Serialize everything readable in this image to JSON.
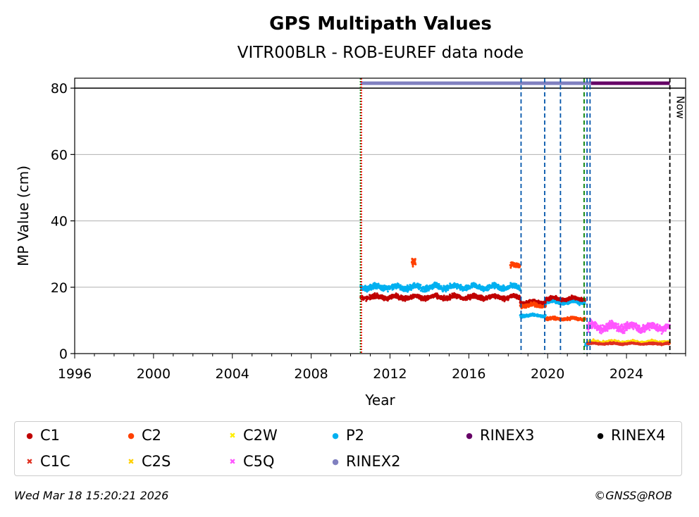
{
  "chart_data": {
    "type": "scatter",
    "title": "GPS Multipath Values",
    "subtitle": "VITR00BLR - ROB-EUREF data node",
    "xlabel": "Year",
    "ylabel": "MP Value (cm)",
    "xlim": [
      1996,
      2027
    ],
    "ylim": [
      0,
      83
    ],
    "xticks": [
      1996,
      2000,
      2004,
      2008,
      2012,
      2016,
      2020,
      2024
    ],
    "yticks": [
      0,
      20,
      40,
      60,
      80
    ],
    "grid": "y",
    "colors": {
      "C1": "#c00000",
      "C1C": "#e03020",
      "C2": "#ff4000",
      "C2S": "#ffd000",
      "C2W": "#ffee00",
      "C5Q": "#ff55ff",
      "P2": "#00b0f0",
      "RINEX2": "#8080c0",
      "RINEX3": "#660066",
      "RINEX4": "#000000",
      "green_line": "#008000",
      "red_line": "#ff0000",
      "blue_line": "#0055aa",
      "now_line": "#000000"
    },
    "reference_line_y": 80,
    "series": [
      {
        "name": "P2",
        "segments": [
          {
            "x": [
              2010.5,
              2018.6
            ],
            "base": 20,
            "noise": 1.2
          },
          {
            "x": [
              2018.6,
              2019.9
            ],
            "base": 11.5,
            "noise": 0.6
          },
          {
            "x": [
              2019.9,
              2021.9
            ],
            "base": 15.5,
            "noise": 0.8
          },
          {
            "x": [
              2021.9,
              2022.2
            ],
            "base": 3,
            "noise": 0.8
          }
        ]
      },
      {
        "name": "C1",
        "segments": [
          {
            "x": [
              2010.5,
              2018.6
            ],
            "base": 17,
            "noise": 1.0
          },
          {
            "x": [
              2018.6,
              2019.9
            ],
            "base": 15.5,
            "noise": 0.8
          },
          {
            "x": [
              2019.9,
              2021.9
            ],
            "base": 16.5,
            "noise": 0.8
          }
        ]
      },
      {
        "name": "C2",
        "segments": [
          {
            "x": [
              2013.1,
              2013.3
            ],
            "base": 27,
            "noise": 2.0
          },
          {
            "x": [
              2018.1,
              2018.6
            ],
            "base": 26.5,
            "noise": 1.0
          },
          {
            "x": [
              2018.6,
              2019.9
            ],
            "base": 14.5,
            "noise": 0.8
          },
          {
            "x": [
              2019.9,
              2021.9
            ],
            "base": 10.5,
            "noise": 0.6
          }
        ]
      },
      {
        "name": "C5Q",
        "segments": [
          {
            "x": [
              2022.0,
              2026.2
            ],
            "base": 8,
            "noise": 1.8
          }
        ]
      },
      {
        "name": "C2S",
        "segments": [
          {
            "x": [
              2022.0,
              2026.2
            ],
            "base": 3.5,
            "noise": 0.6
          }
        ]
      },
      {
        "name": "C2W",
        "segments": [
          {
            "x": [
              2022.0,
              2026.2
            ],
            "base": 3.2,
            "noise": 0.5
          }
        ]
      },
      {
        "name": "C1C",
        "segments": [
          {
            "x": [
              2022.0,
              2026.2
            ],
            "base": 3.0,
            "noise": 0.4
          }
        ]
      }
    ],
    "format_bars": [
      {
        "name": "RINEX2",
        "x": [
          2010.5,
          2022.2
        ],
        "y": 81.5
      },
      {
        "name": "RINEX3",
        "x": [
          2022.2,
          2026.2
        ],
        "y": 81.5
      }
    ],
    "vertical_lines": [
      {
        "x": 2010.5,
        "color": "green_line",
        "style": "dotted"
      },
      {
        "x": 2010.55,
        "color": "red_line",
        "style": "dotted"
      },
      {
        "x": 2018.65,
        "color": "blue_line",
        "style": "dashed"
      },
      {
        "x": 2019.85,
        "color": "blue_line",
        "style": "dashed"
      },
      {
        "x": 2020.65,
        "color": "blue_line",
        "style": "dashed"
      },
      {
        "x": 2021.85,
        "color": "green_line",
        "style": "dashed"
      },
      {
        "x": 2022.0,
        "color": "blue_line",
        "style": "dashed"
      },
      {
        "x": 2022.15,
        "color": "blue_line",
        "style": "dashed"
      },
      {
        "x": 2026.2,
        "color": "now_line",
        "style": "dashed"
      }
    ],
    "now_label": "Now",
    "legend": [
      {
        "name": "C1",
        "marker": "●"
      },
      {
        "name": "C2",
        "marker": "●"
      },
      {
        "name": "C2W",
        "marker": "✖"
      },
      {
        "name": "P2",
        "marker": "●"
      },
      {
        "name": "RINEX3",
        "marker": "●"
      },
      {
        "name": "RINEX4",
        "marker": "●"
      },
      {
        "name": "C1C",
        "marker": "✖"
      },
      {
        "name": "C2S",
        "marker": "✖"
      },
      {
        "name": "C5Q",
        "marker": "✖"
      },
      {
        "name": "RINEX2",
        "marker": "●"
      }
    ]
  },
  "footer": {
    "timestamp": "Wed Mar 18 15:20:21 2026",
    "credit": "©GNSS@ROB"
  }
}
